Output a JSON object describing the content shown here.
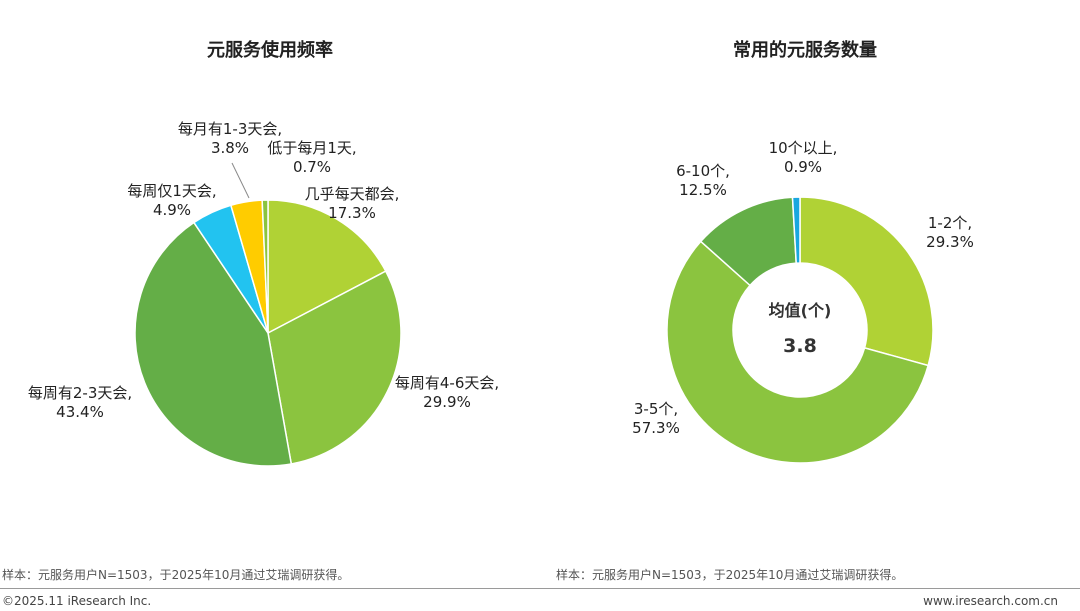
{
  "colors": {
    "light_green": "#B0D235",
    "mid_green": "#8BC43F",
    "dark_green": "#64AE47",
    "cyan": "#22C3F0",
    "yellow": "#FFCC00",
    "donut_small": "#19A7E0"
  },
  "chart_data": [
    {
      "type": "pie",
      "title": "元服务使用频率",
      "slices": [
        {
          "label": "几乎每天都会,",
          "pct_text": "17.3%",
          "value": 17.3,
          "color": "#B0D235"
        },
        {
          "label": "每周有4-6天会,",
          "pct_text": "29.9%",
          "value": 29.9,
          "color": "#8BC43F"
        },
        {
          "label": "每周有2-3天会,",
          "pct_text": "43.4%",
          "value": 43.4,
          "color": "#64AE47"
        },
        {
          "label": "每周仅1天会,",
          "pct_text": "4.9%",
          "value": 4.9,
          "color": "#22C3F0"
        },
        {
          "label": "每月有1-3天会,",
          "pct_text": "3.8%",
          "value": 3.8,
          "color": "#FFCC00"
        },
        {
          "label": "低于每月1天,",
          "pct_text": "0.7%",
          "value": 0.7,
          "color": "#8BC43F"
        }
      ]
    },
    {
      "type": "pie",
      "subtype": "donut",
      "title": "常用的元服务数量",
      "center_label": "均值(个)",
      "center_value": "3.8",
      "slices": [
        {
          "label": "1-2个,",
          "pct_text": "29.3%",
          "value": 29.3,
          "color": "#B0D235"
        },
        {
          "label": "3-5个,",
          "pct_text": "57.3%",
          "value": 57.3,
          "color": "#8BC43F"
        },
        {
          "label": "6-10个,",
          "pct_text": "12.5%",
          "value": 12.5,
          "color": "#64AE47"
        },
        {
          "label": "10个以上,",
          "pct_text": "0.9%",
          "value": 0.9,
          "color": "#19A7E0"
        }
      ]
    }
  ],
  "notes": {
    "left": "样本：元服务用户N=1503，于2025年10月通过艾瑞调研获得。",
    "right": "样本：元服务用户N=1503，于2025年10月通过艾瑞调研获得。"
  },
  "footer": {
    "copyright": "©2025.11 iResearch Inc.",
    "url": "www.iresearch.com.cn"
  }
}
